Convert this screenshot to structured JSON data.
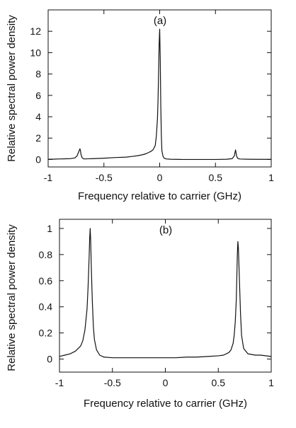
{
  "chart_data": [
    {
      "type": "line",
      "panel_label": "(a)",
      "xlabel": "Frequency relative to carrier (GHz)",
      "ylabel": "Relative spectral power density",
      "xlim": [
        -1,
        1
      ],
      "ylim": [
        -0.7,
        14
      ],
      "xticks": [
        -1,
        -0.5,
        0,
        0.5,
        1
      ],
      "xtick_labels": [
        "-1",
        "-0.5",
        "0",
        "0.5",
        "1"
      ],
      "yticks": [
        0,
        2,
        4,
        6,
        8,
        10,
        12
      ],
      "ytick_labels": [
        "0",
        "2",
        "4",
        "6",
        "8",
        "10",
        "12"
      ],
      "grid": false,
      "series": [
        {
          "x": [
            -1.0,
            -0.95,
            -0.9,
            -0.85,
            -0.8,
            -0.76,
            -0.74,
            -0.725,
            -0.715,
            -0.71,
            -0.705,
            -0.695,
            -0.68,
            -0.6,
            -0.5,
            -0.4,
            -0.3,
            -0.25,
            -0.2,
            -0.15,
            -0.12,
            -0.1,
            -0.08,
            -0.06,
            -0.04,
            -0.03,
            -0.02,
            -0.015,
            -0.01,
            -0.005,
            0.0,
            0.005,
            0.01,
            0.015,
            0.02,
            0.03,
            0.04,
            0.06,
            0.1,
            0.2,
            0.3,
            0.4,
            0.5,
            0.6,
            0.65,
            0.67,
            0.675,
            0.68,
            0.685,
            0.69,
            0.7,
            0.72,
            0.8,
            0.9,
            1.0
          ],
          "y": [
            0.02,
            0.03,
            0.05,
            0.06,
            0.08,
            0.15,
            0.35,
            0.75,
            1.0,
            0.8,
            0.45,
            0.15,
            0.05,
            0.08,
            0.12,
            0.18,
            0.22,
            0.28,
            0.35,
            0.45,
            0.55,
            0.65,
            0.75,
            0.9,
            1.3,
            2.2,
            3.8,
            5.5,
            8.0,
            10.8,
            12.2,
            9.5,
            5.0,
            2.2,
            0.8,
            0.3,
            0.12,
            0.05,
            0.02,
            0.0,
            0.0,
            0.0,
            0.0,
            0.02,
            0.08,
            0.35,
            0.65,
            0.9,
            0.6,
            0.3,
            0.1,
            0.04,
            0.02,
            0.01,
            0.01
          ]
        }
      ]
    },
    {
      "type": "line",
      "panel_label": "(b)",
      "xlabel": "Frequency relative to carrier (GHz)",
      "ylabel": "Relative spectral power density",
      "xlim": [
        -1,
        1
      ],
      "ylim": [
        -0.1,
        1.07
      ],
      "xticks": [
        -1,
        -0.5,
        0,
        0.5,
        1
      ],
      "xtick_labels": [
        "-1",
        "-0.5",
        "0",
        "0.5",
        "1"
      ],
      "yticks": [
        0,
        0.2,
        0.4,
        0.6,
        0.8,
        1
      ],
      "ytick_labels": [
        "0",
        "0.2",
        "0.4",
        "0.6",
        "0.8",
        "1"
      ],
      "grid": false,
      "series": [
        {
          "x": [
            -1.0,
            -0.95,
            -0.9,
            -0.85,
            -0.8,
            -0.78,
            -0.76,
            -0.74,
            -0.73,
            -0.72,
            -0.715,
            -0.71,
            -0.705,
            -0.7,
            -0.69,
            -0.68,
            -0.67,
            -0.65,
            -0.62,
            -0.58,
            -0.5,
            -0.4,
            -0.3,
            -0.2,
            -0.1,
            0.0,
            0.1,
            0.2,
            0.3,
            0.4,
            0.5,
            0.55,
            0.6,
            0.62,
            0.64,
            0.65,
            0.66,
            0.67,
            0.675,
            0.68,
            0.685,
            0.69,
            0.7,
            0.71,
            0.72,
            0.74,
            0.78,
            0.85,
            0.9,
            1.0
          ],
          "y": [
            0.02,
            0.03,
            0.04,
            0.06,
            0.1,
            0.14,
            0.22,
            0.38,
            0.55,
            0.78,
            0.92,
            1.0,
            0.9,
            0.72,
            0.45,
            0.25,
            0.15,
            0.07,
            0.03,
            0.015,
            0.01,
            0.01,
            0.01,
            0.01,
            0.01,
            0.01,
            0.01,
            0.015,
            0.015,
            0.02,
            0.025,
            0.03,
            0.05,
            0.07,
            0.12,
            0.18,
            0.28,
            0.45,
            0.62,
            0.8,
            0.9,
            0.85,
            0.6,
            0.35,
            0.18,
            0.08,
            0.04,
            0.03,
            0.03,
            0.02
          ]
        }
      ]
    }
  ]
}
